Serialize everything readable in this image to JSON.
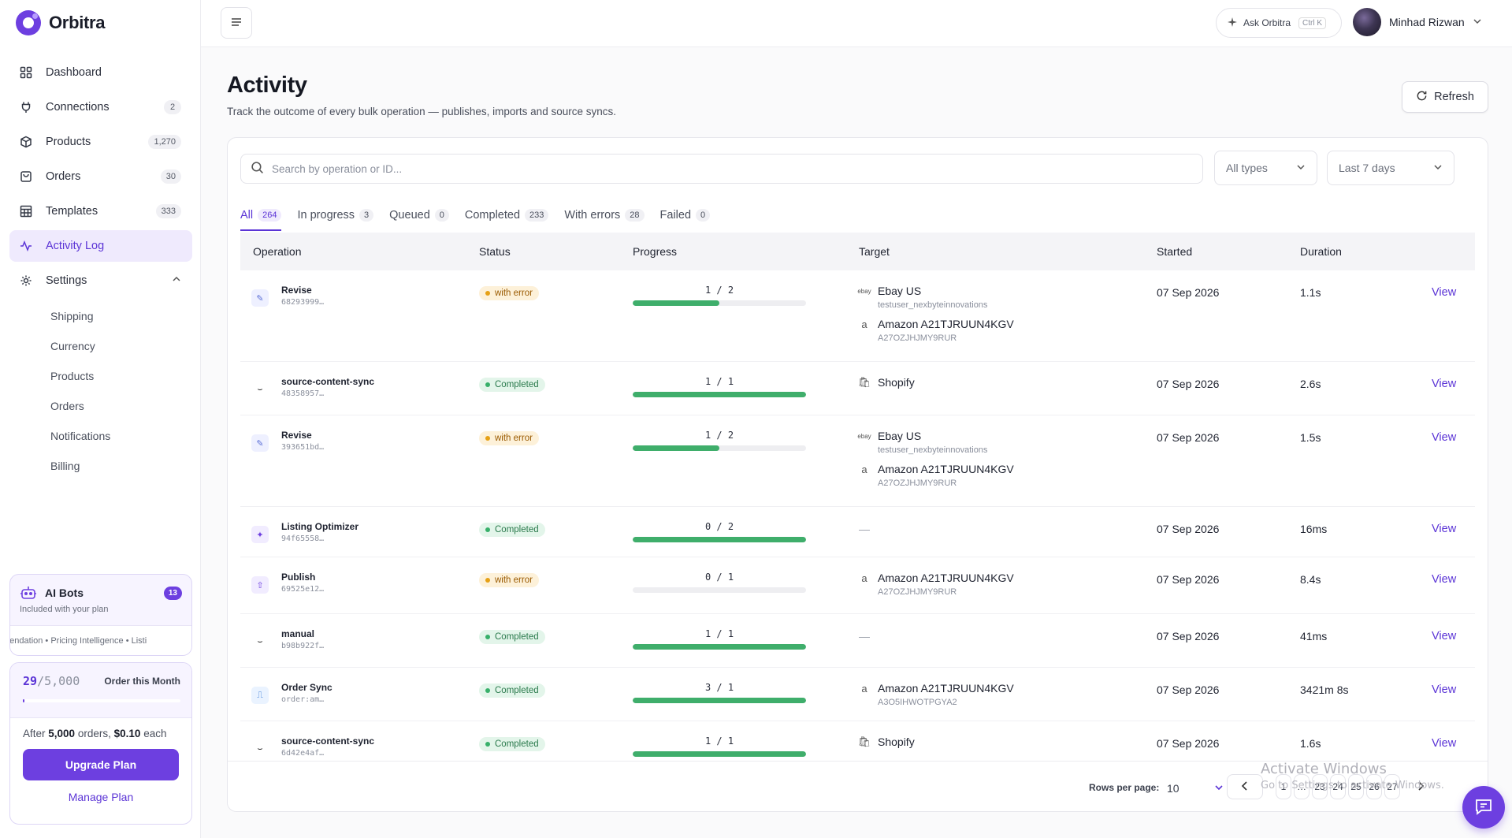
{
  "brand": {
    "name": "Orbitra"
  },
  "sidebar": {
    "items": [
      {
        "label": "Dashboard",
        "badge": "",
        "icon": "grid-icon"
      },
      {
        "label": "Connections",
        "badge": "2",
        "icon": "plug-icon"
      },
      {
        "label": "Products",
        "badge": "1,270",
        "icon": "box-icon"
      },
      {
        "label": "Orders",
        "badge": "30",
        "icon": "bag-icon"
      },
      {
        "label": "Templates",
        "badge": "333",
        "icon": "table-icon"
      },
      {
        "label": "Activity Log",
        "badge": "",
        "icon": "activity-icon"
      },
      {
        "label": "Settings",
        "badge": "",
        "icon": "gear-icon"
      }
    ],
    "settings_sub": [
      "Shipping",
      "Currency",
      "Products",
      "Orders",
      "Notifications",
      "Billing"
    ]
  },
  "bots": {
    "title": "AI Bots",
    "count": "13",
    "subtitle": "Included with your plan",
    "ticker": "mendation  •  Pricing Intelligence  •  Listi"
  },
  "plan": {
    "used": "29",
    "limit": "/5,000",
    "label": "Order this Month",
    "usage_fraction": 0.0058,
    "after_prefix": "After",
    "after_orders": "5,000",
    "after_mid": "orders,",
    "after_price": "$0.10",
    "after_suffix": "each",
    "upgrade": "Upgrade Plan",
    "manage": "Manage Plan"
  },
  "topbar": {
    "ask_label": "Ask Orbitra",
    "ask_kbd": "Ctrl K",
    "user_name": "Minhad Rizwan"
  },
  "page": {
    "title": "Activity",
    "subtitle": "Track the outcome of every bulk operation — publishes, imports and source syncs.",
    "refresh": "Refresh"
  },
  "filters": {
    "search_placeholder": "Search by operation or ID...",
    "type_select": "All types",
    "range_select": "Last 7 days"
  },
  "tabs": [
    {
      "label": "All",
      "count": "264"
    },
    {
      "label": "In progress",
      "count": "3"
    },
    {
      "label": "Queued",
      "count": "0"
    },
    {
      "label": "Completed",
      "count": "233"
    },
    {
      "label": "With errors",
      "count": "28"
    },
    {
      "label": "Failed",
      "count": "0"
    }
  ],
  "table": {
    "headers": [
      "Operation",
      "Status",
      "Progress",
      "Target",
      "Started",
      "Duration"
    ],
    "view_label": "View",
    "rows": [
      {
        "name": "Revise",
        "id": "68293999…",
        "status": "with error",
        "progress": "1 / 2",
        "fraction": 0.5,
        "targets": [
          {
            "name": "Ebay US",
            "sub": "testuser_nexbyteinnovations",
            "icon": "ebay"
          },
          {
            "name": "Amazon A21TJRUUN4KGV",
            "sub": "A27OZJHJMY9RUR",
            "icon": "amazon"
          }
        ],
        "started": "07 Sep 2026",
        "duration": "1.1s"
      },
      {
        "name": "source-content-sync",
        "id": "48358957…",
        "status": "Completed",
        "progress": "1 / 1",
        "fraction": 1,
        "targets": [
          {
            "name": "Shopify",
            "sub": "",
            "icon": "shopify"
          }
        ],
        "started": "07 Sep 2026",
        "duration": "2.6s"
      },
      {
        "name": "Revise",
        "id": "393651bd…",
        "status": "with error",
        "progress": "1 / 2",
        "fraction": 0.5,
        "targets": [
          {
            "name": "Ebay US",
            "sub": "testuser_nexbyteinnovations",
            "icon": "ebay"
          },
          {
            "name": "Amazon A21TJRUUN4KGV",
            "sub": "A27OZJHJMY9RUR",
            "icon": "amazon"
          }
        ],
        "started": "07 Sep 2026",
        "duration": "1.5s"
      },
      {
        "name": "Listing Optimizer",
        "id": "94f65558…",
        "status": "Completed",
        "progress": "0 / 2",
        "fraction": 1,
        "targets": [],
        "started": "07 Sep 2026",
        "duration": "16ms"
      },
      {
        "name": "Publish",
        "id": "69525e12…",
        "status": "with error",
        "progress": "0 / 1",
        "fraction": 0,
        "targets": [
          {
            "name": "Amazon A21TJRUUN4KGV",
            "sub": "A27OZJHJMY9RUR",
            "icon": "amazon"
          }
        ],
        "started": "07 Sep 2026",
        "duration": "8.4s"
      },
      {
        "name": "manual",
        "id": "b98b922f…",
        "status": "Completed",
        "progress": "1 / 1",
        "fraction": 1,
        "targets": [],
        "started": "07 Sep 2026",
        "duration": "41ms"
      },
      {
        "name": "Order Sync",
        "id": "order:am…",
        "status": "Completed",
        "progress": "3 / 1",
        "fraction": 1,
        "targets": [
          {
            "name": "Amazon A21TJRUUN4KGV",
            "sub": "A3O5IHWOTPGYA2",
            "icon": "amazon"
          }
        ],
        "started": "07 Sep 2026",
        "duration": "3421m 8s"
      },
      {
        "name": "source-content-sync",
        "id": "6d42e4af…",
        "status": "Completed",
        "progress": "1 / 1",
        "fraction": 1,
        "targets": [
          {
            "name": "Shopify",
            "sub": "",
            "icon": "shopify"
          }
        ],
        "started": "07 Sep 2026",
        "duration": "1.6s"
      }
    ]
  },
  "pagination": {
    "rows_label": "Rows per page:",
    "rows_value": "10",
    "pages": [
      "1",
      "…",
      "23",
      "24",
      "25",
      "26",
      "27"
    ]
  },
  "watermark": {
    "title": "Activate Windows",
    "sub": "Go to Settings to activate Windows."
  },
  "colors": {
    "accent": "#6d3fe0",
    "success": "#3fae6b",
    "warning": "#e6a116"
  }
}
